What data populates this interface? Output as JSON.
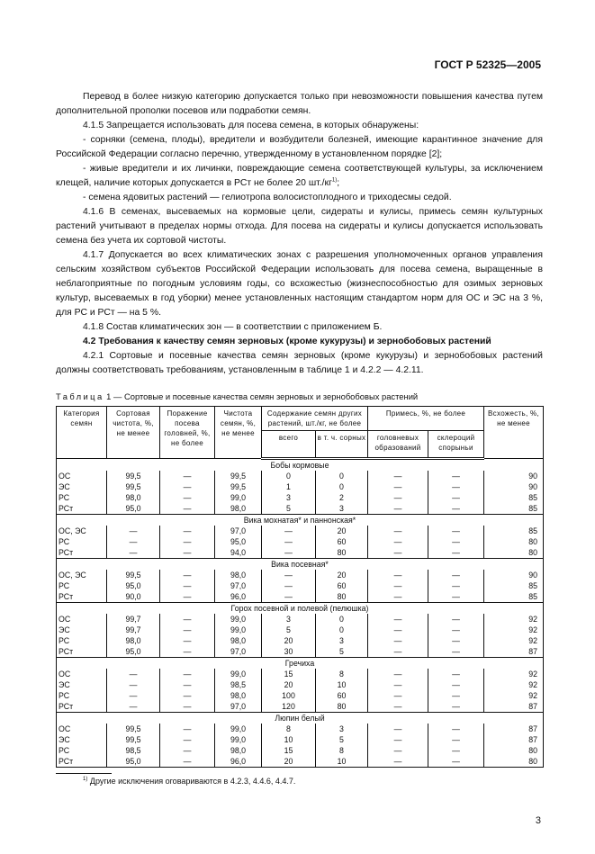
{
  "header": {
    "standard": "ГОСТ Р 52325—2005"
  },
  "paragraphs": [
    {
      "text": "Перевод в более низкую категорию допускается только при невозможности повышения качества путем дополнительной прополки посевов или подработки семян."
    },
    {
      "text": "4.1.5 Запрещается использовать для посева семена, в которых обнаружены:"
    },
    {
      "text": "- сорняки (семена, плоды), вредители и возбудители болезней, имеющие карантинное значение для Российской Федерации согласно перечню, утвержденному в установленном порядке [2];"
    },
    {
      "text": "- живые вредители и их личинки, повреждающие семена соответствующей культуры, за исключением клещей, наличие которых допускается в РСт не более 20 шт./кг",
      "sup": "1)",
      "tail": ";"
    },
    {
      "text": "- семена ядовитых растений — гелиотропа волосистоплодного и триходесмы седой."
    },
    {
      "text": "4.1.6 В семенах, высеваемых на кормовые цели, сидераты и кулисы, примесь семян культурных растений учитывают в пределах нормы отхода. Для посева на сидераты и кулисы допускается использовать семена без учета их сортовой чистоты."
    },
    {
      "text": "4.1.7 Допускается во всех климатических зонах с разрешения уполномоченных органов управления сельским хозяйством субъектов Российской Федерации использовать для посева семена, выращенные в неблагоприятные по погодным условиям годы, со всхожестью (жизнеспособностью для озимых зерновых культур, высеваемых в год уборки) менее установленных настоящим стандартом норм для ОС и ЭС на 3 %, для РС и РСт — на 5 %."
    },
    {
      "text": "4.1.8 Состав климатических зон — в соответствии с приложением Б."
    },
    {
      "text": "4.2 Требования к качеству семян зерновых (кроме кукурузы) и зернобобовых растений",
      "bold": true
    },
    {
      "text": "4.2.1 Сортовые и посевные качества семян зерновых (кроме кукурузы) и зернобобовых растений должны соответствовать требованиям, установленным в таблице 1 и 4.2.2 — 4.2.11."
    }
  ],
  "table": {
    "caption_label": "Таблица",
    "caption_text": " 1 — Сортовые и посевные качества семян зерновых и зернобобовых растений",
    "headers": {
      "category": "Категория семян",
      "varietal": "Сортовая чистота, %, не менее",
      "smut": "Поражение посева головней, %, не более",
      "purity": "Чистота семян, %, не менее",
      "other_seeds": "Содержание семян других растений, шт./кг, не более",
      "total": "всего",
      "weeds": "в т. ч. сорных",
      "admixture": "Примесь, %, не более",
      "smut_form": "головневых образований",
      "ergot": "склероций спорыньи",
      "germination": "Всхожесть, %, не менее"
    },
    "sections": [
      {
        "title": "Бобы кормовые",
        "rows": [
          [
            "ОС",
            "99,5",
            "—",
            "99,5",
            "0",
            "0",
            "—",
            "—",
            "90"
          ],
          [
            "ЭС",
            "99,5",
            "—",
            "99,5",
            "1",
            "0",
            "—",
            "—",
            "90"
          ],
          [
            "РС",
            "98,0",
            "—",
            "99,0",
            "3",
            "2",
            "—",
            "—",
            "85"
          ],
          [
            "РСт",
            "95,0",
            "—",
            "98,0",
            "5",
            "3",
            "—",
            "—",
            "85"
          ]
        ]
      },
      {
        "title": "Вика мохнатая* и паннонская*",
        "rows": [
          [
            "ОС, ЭС",
            "—",
            "—",
            "97,0",
            "—",
            "20",
            "—",
            "—",
            "85"
          ],
          [
            "РС",
            "—",
            "—",
            "95,0",
            "—",
            "60",
            "—",
            "—",
            "80"
          ],
          [
            "РСт",
            "—",
            "—",
            "94,0",
            "—",
            "80",
            "—",
            "—",
            "80"
          ]
        ]
      },
      {
        "title": "Вика посевная*",
        "rows": [
          [
            "ОС, ЭС",
            "99,5",
            "—",
            "98,0",
            "—",
            "20",
            "—",
            "—",
            "90"
          ],
          [
            "РС",
            "95,0",
            "—",
            "97,0",
            "—",
            "60",
            "—",
            "—",
            "85"
          ],
          [
            "РСт",
            "90,0",
            "—",
            "96,0",
            "—",
            "80",
            "—",
            "—",
            "85"
          ]
        ]
      },
      {
        "title": "Горох посевной и полевой (пелюшка)",
        "rows": [
          [
            "ОС",
            "99,7",
            "—",
            "99,0",
            "3",
            "0",
            "—",
            "—",
            "92"
          ],
          [
            "ЭС",
            "99,7",
            "—",
            "99,0",
            "5",
            "0",
            "—",
            "—",
            "92"
          ],
          [
            "РС",
            "98,0",
            "—",
            "98,0",
            "20",
            "3",
            "—",
            "—",
            "92"
          ],
          [
            "РСт",
            "95,0",
            "—",
            "97,0",
            "30",
            "5",
            "—",
            "—",
            "87"
          ]
        ]
      },
      {
        "title": "Гречиха",
        "rows": [
          [
            "ОС",
            "—",
            "—",
            "99,0",
            "15",
            "8",
            "—",
            "—",
            "92"
          ],
          [
            "ЭС",
            "—",
            "—",
            "98,5",
            "20",
            "10",
            "—",
            "—",
            "92"
          ],
          [
            "РС",
            "—",
            "—",
            "98,0",
            "100",
            "60",
            "—",
            "—",
            "92"
          ],
          [
            "РСт",
            "—",
            "—",
            "97,0",
            "120",
            "80",
            "—",
            "—",
            "87"
          ]
        ]
      },
      {
        "title": "Люпин белый",
        "rows": [
          [
            "ОС",
            "99,5",
            "—",
            "99,0",
            "8",
            "3",
            "—",
            "—",
            "87"
          ],
          [
            "ЭС",
            "99,5",
            "—",
            "99,0",
            "10",
            "5",
            "—",
            "—",
            "87"
          ],
          [
            "РС",
            "98,5",
            "—",
            "98,0",
            "15",
            "8",
            "—",
            "—",
            "80"
          ],
          [
            "РСт",
            "95,0",
            "—",
            "96,0",
            "20",
            "10",
            "—",
            "—",
            "80"
          ]
        ]
      }
    ]
  },
  "footnote": {
    "mark": "1)",
    "text": " Другие исключения оговариваются в 4.2.3, 4.4.6, 4.4.7."
  },
  "page_number": "3"
}
